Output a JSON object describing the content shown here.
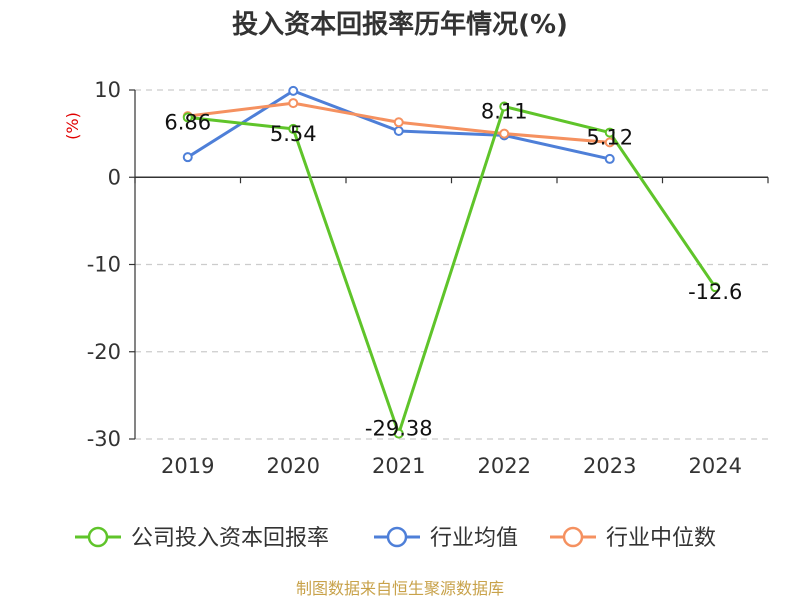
{
  "chart_data": {
    "type": "line",
    "title": "投入资本回报率历年情况(%)",
    "ylabel": "(%)",
    "categories": [
      "2019",
      "2020",
      "2021",
      "2022",
      "2023",
      "2024"
    ],
    "ylim": [
      -30,
      10
    ],
    "yticks": [
      10,
      0,
      -10,
      -20,
      -30
    ],
    "grid": true,
    "legend_position": "bottom",
    "series": [
      {
        "name": "公司投入资本回报率",
        "color": "#5fc42a",
        "values": [
          6.86,
          5.54,
          -29.38,
          8.11,
          5.12,
          -12.6
        ],
        "labels": [
          "6.86",
          "5.54",
          "-29.38",
          "8.11",
          "5.12",
          "-12.6"
        ]
      },
      {
        "name": "行业均值",
        "color": "#4e7fd8",
        "values": [
          2.3,
          9.9,
          5.3,
          4.8,
          2.1,
          null
        ]
      },
      {
        "name": "行业中位数",
        "color": "#f59160",
        "values": [
          7.0,
          8.5,
          6.3,
          5.0,
          4.0,
          null
        ]
      }
    ]
  },
  "source": "制图数据来自恒生聚源数据库"
}
